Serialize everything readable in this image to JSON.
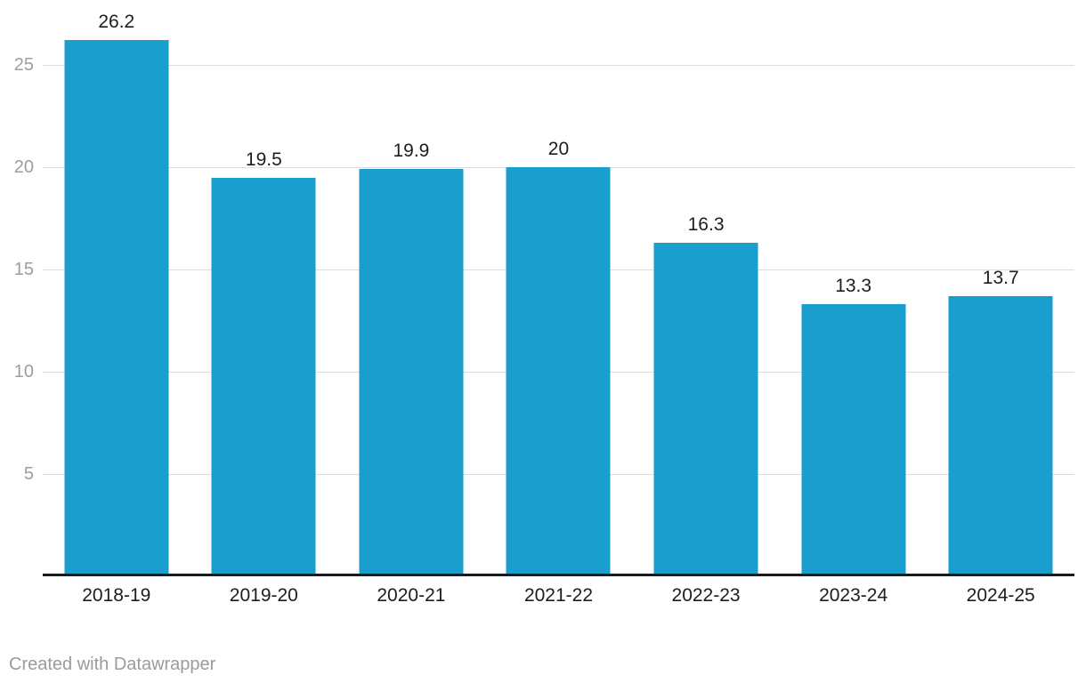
{
  "chart_data": {
    "type": "bar",
    "categories": [
      "2018-19",
      "2019-20",
      "2020-21",
      "2021-22",
      "2022-23",
      "2023-24",
      "2024-25"
    ],
    "values": [
      26.2,
      19.5,
      19.9,
      20,
      16.3,
      13.3,
      13.7
    ],
    "value_labels": [
      "26.2",
      "19.5",
      "19.9",
      "20",
      "16.3",
      "13.3",
      "13.7"
    ],
    "title": "",
    "subtitle": "",
    "xlabel": "",
    "ylabel": "",
    "ylim": [
      0,
      27
    ],
    "y_ticks": [
      5,
      10,
      15,
      20,
      25
    ],
    "grid": true,
    "legend_position": "none",
    "bar_color": "#1a9ece"
  },
  "colors": {
    "bar": "#1a9ece",
    "gridline": "#dddddd",
    "axis_line": "#1a1a1a",
    "y_tick_text": "#9e9e9e",
    "x_tick_text": "#1d1d1d",
    "value_label_text": "#1d1d1d",
    "credit_text": "#9b9b9b",
    "background": "#ffffff"
  },
  "footer": {
    "credit": "Created with Datawrapper"
  }
}
